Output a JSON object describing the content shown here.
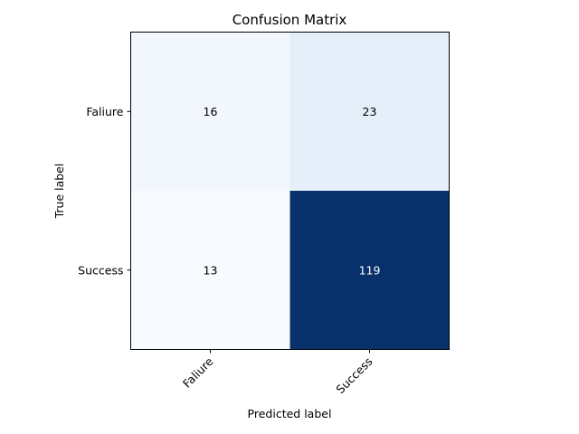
{
  "chart_data": {
    "type": "heatmap",
    "title": "Confusion Matrix",
    "xlabel": "Predicted label",
    "ylabel": "True label",
    "x_categories": [
      "Faliure",
      "Success"
    ],
    "y_categories": [
      "Faliure",
      "Success"
    ],
    "values": [
      [
        16,
        23
      ],
      [
        13,
        119
      ]
    ],
    "colormap": "Blues",
    "color_low": "#f7fbff",
    "color_high": "#08306b",
    "text_dark": "#000000",
    "text_light": "#ffffff",
    "grid": false
  }
}
